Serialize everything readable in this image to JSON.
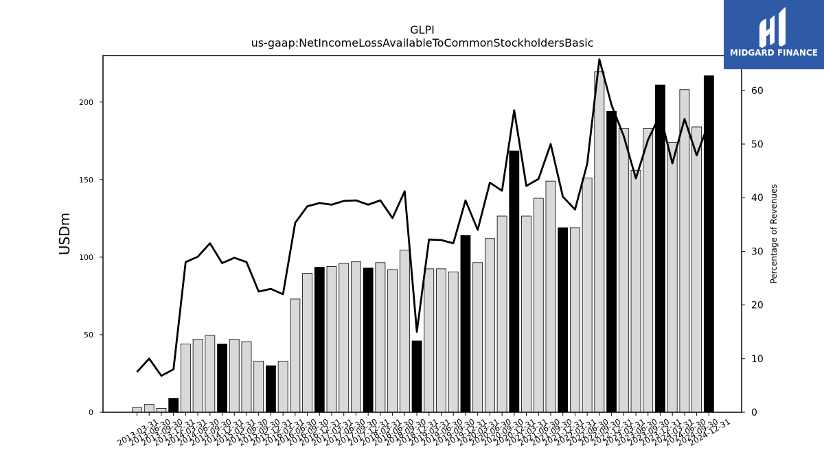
{
  "brand": {
    "name": "MIDGARD FINANCE",
    "color": "#2f5aa8",
    "icon": "midgard-logo-icon"
  },
  "chart_data": {
    "type": "bar",
    "title": "GLPI",
    "subtitle": "us-gaap:NetIncomeLossAvailableToCommonStockholdersBasic",
    "ylabel": "USDm",
    "y2label": "Percentage of Revenues",
    "ylim": [
      0,
      230
    ],
    "y2lim": [
      0,
      66.5
    ],
    "yticks": [
      0,
      50,
      100,
      150,
      200
    ],
    "y2ticks": [
      0,
      10,
      20,
      30,
      40,
      50,
      60
    ],
    "categories": [
      "2013-03-31",
      "2013-06-30",
      "2013-09-30",
      "2013-12-31",
      "2014-03-31",
      "2014-06-30",
      "2014-09-30",
      "2014-12-31",
      "2015-03-31",
      "2015-06-30",
      "2015-09-30",
      "2015-12-31",
      "2016-03-31",
      "2016-06-30",
      "2016-09-30",
      "2016-12-31",
      "2017-03-31",
      "2017-06-30",
      "2017-09-30",
      "2017-12-31",
      "2018-03-31",
      "2018-06-30",
      "2018-09-30",
      "2018-12-31",
      "2019-03-31",
      "2019-06-30",
      "2019-09-30",
      "2019-12-31",
      "2020-03-31",
      "2020-06-30",
      "2020-09-30",
      "2020-12-31",
      "2021-03-31",
      "2021-06-30",
      "2021-09-30",
      "2021-12-31",
      "2022-03-31",
      "2022-06-30",
      "2022-09-30",
      "2022-12-31",
      "2023-03-31",
      "2023-06-30",
      "2023-09-30",
      "2023-12-31",
      "2024-03-31",
      "2024-06-30",
      "2024-09-30",
      "2024-12-31"
    ],
    "series": [
      {
        "values": [
          3,
          5,
          2.5,
          9,
          44,
          47,
          49.5,
          44,
          47,
          45.5,
          33,
          30,
          33,
          73,
          89.5,
          93.5,
          94,
          96,
          97,
          93,
          96.5,
          92,
          104.5,
          46,
          92.5,
          92.5,
          90.5,
          114,
          96.5,
          112,
          126.5,
          168.5,
          126.5,
          138,
          149,
          119,
          119,
          151,
          219.5,
          194,
          183,
          156,
          183,
          211,
          174,
          208,
          184,
          217
        ],
        "highlight": [
          false,
          false,
          false,
          true,
          false,
          false,
          false,
          true,
          false,
          false,
          false,
          true,
          false,
          false,
          false,
          true,
          false,
          false,
          false,
          true,
          false,
          false,
          false,
          true,
          false,
          false,
          false,
          true,
          false,
          false,
          false,
          true,
          false,
          false,
          false,
          true,
          false,
          false,
          false,
          true,
          false,
          false,
          false,
          true,
          false,
          false,
          false,
          true
        ],
        "bar_color": "#d9d9d9",
        "highlight_color": "#000000"
      },
      {
        "type": "line",
        "axis": "right",
        "values": [
          7.5,
          10,
          6.8,
          8,
          28,
          29,
          31.5,
          27.8,
          28.8,
          28,
          22.5,
          23,
          22,
          35.3,
          38.4,
          39,
          38.7,
          39.4,
          39.5,
          38.7,
          39.5,
          36.2,
          41.2,
          15,
          32.2,
          32.1,
          31.5,
          39.5,
          34,
          42.8,
          41.3,
          56.3,
          42.2,
          43.5,
          50,
          40.2,
          37.8,
          46.3,
          65.8,
          57.3,
          51.5,
          43.6,
          50.8,
          55.5,
          46.4,
          54.7,
          47.9,
          54
        ],
        "color": "#000000"
      }
    ],
    "grid": false,
    "legend": "none"
  }
}
